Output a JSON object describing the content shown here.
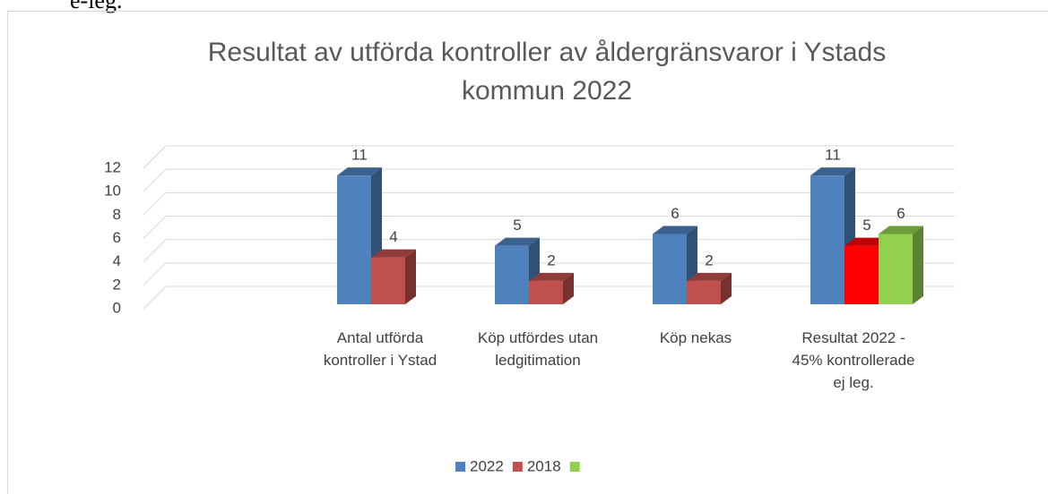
{
  "page_text": "e-leg.",
  "chart_data": {
    "type": "bar3d",
    "title": "Resultat av utförda kontroller av åldergränsvaror i Ystads kommun 2022",
    "categories": [
      null,
      "Antal utförda kontroller i Ystad",
      "Köp utfördes utan ledgitimation",
      "Köp nekas",
      "Resultat 2022 - 45% kontrollerade ej leg."
    ],
    "series": [
      {
        "name": "2022",
        "color": "#4f81bd",
        "values": [
          null,
          11,
          5,
          6,
          11
        ]
      },
      {
        "name": "2018",
        "color": "#c0504d",
        "colors": [
          "#c0504d",
          "#c0504d",
          "#c0504d",
          "#c0504d",
          "#ff0000"
        ],
        "values": [
          null,
          4,
          2,
          2,
          5
        ]
      },
      {
        "color": "#92d050",
        "values": [
          null,
          null,
          null,
          null,
          6
        ]
      }
    ],
    "ylim": [
      0,
      12
    ],
    "yticks": [
      0,
      2,
      4,
      6,
      8,
      10,
      12
    ],
    "grid": true,
    "legend": "bottom",
    "data_labels": true
  }
}
